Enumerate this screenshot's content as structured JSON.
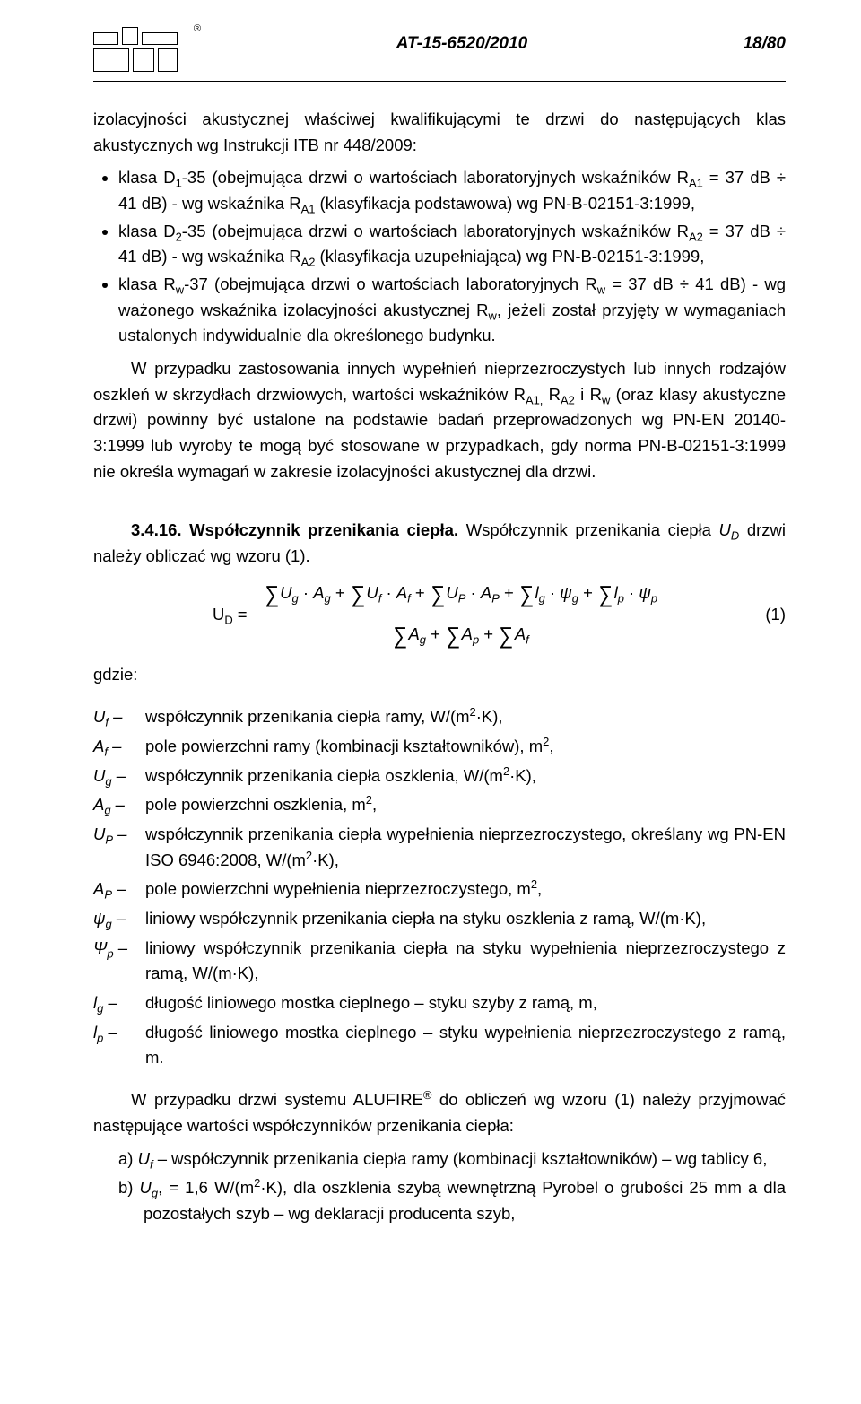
{
  "header": {
    "doc_number": "AT-15-6520/2010",
    "page": "18/80"
  },
  "lead_fragment": "izolacyjności akustycznej właściwej kwalifikującymi te drzwi do następujących klas akustycznych wg Instrukcji ITB nr 448/2009:",
  "bullets": [
    "klasa D<sub>1</sub>-35 (obejmująca drzwi o wartościach laboratoryjnych wskaźników R<sub>A1</sub> = 37 dB ÷ 41 dB) - wg wskaźnika R<sub>A1</sub> (klasyfikacja podstawowa) wg PN-B-02151-3:1999,",
    "klasa D<sub>2</sub>-35 (obejmująca drzwi o wartościach laboratoryjnych wskaźników R<sub>A2</sub> = 37 dB ÷ 41 dB) - wg wskaźnika R<sub>A2</sub> (klasyfikacja uzupełniająca) wg PN-B-02151-3:1999,",
    "klasa R<sub>w</sub>-37 (obejmująca drzwi o wartościach laboratoryjnych R<sub>w</sub> = 37 dB ÷ 41 dB) - wg ważonego wskaźnika izolacyjności akustycznej R<sub>w</sub>, jeżeli został przyjęty w wymaganiach ustalonych indywidualnie dla określonego budynku."
  ],
  "para_after_bullets": "W przypadku zastosowania innych wypełnień nieprzezroczystych lub innych rodzajów oszkleń w skrzydłach drzwiowych, wartości wskaźników R<sub>A1,</sub> R<sub>A2</sub> i R<sub>w</sub> (oraz klasy akustyczne drzwi) powinny być ustalone na podstawie badań przeprowadzonych wg PN-EN 20140-3:1999 lub wyroby te mogą być stosowane w przypadkach, gdy norma PN-B-02151-3:1999 nie określa wymagań w zakresie izolacyjności akustycznej dla drzwi.",
  "section_3_4_16": {
    "label": "3.4.16. Współczynnik przenikania ciepła.",
    "text": " Współczynnik przenikania ciepła <i>U<sub>D</sub></i> drzwi należy obliczać wg wzoru (1)."
  },
  "formula": {
    "lhs": "U<sub>D</sub> =",
    "num": "<span class=\"sum\">∑</span><i>U<sub>g</sub></i> · <i>A<sub>g</sub></i> + <span class=\"sum\">∑</span><i>U<sub>f</sub></i> · <i>A<sub>f</sub></i> + <span class=\"sum\">∑</span><i>U<sub>P</sub></i> · <i>A<sub>P</sub></i> + <span class=\"sum\">∑</span><i>l<sub>g</sub></i> · <i>ψ<sub>g</sub></i> + <span class=\"sum\">∑</span><i>l<sub>p</sub></i> · <i>ψ<sub>p</sub></i>",
    "den": "<span class=\"sum\">∑</span><i>A<sub>g</sub></i> + <span class=\"sum\">∑</span><i>A<sub>p</sub></i> + <span class=\"sum\">∑</span><i>A<sub>f</sub></i>",
    "eqno": "(1)"
  },
  "gdzie_label": "gdzie:",
  "defs": [
    {
      "sym": "U<sub>f</sub> –",
      "desc": "współczynnik przenikania ciepła ramy, W/(m<sup>2</sup>·K),"
    },
    {
      "sym": "A<sub>f</sub> –",
      "desc": "pole powierzchni ramy (kombinacji kształtowników), m<sup>2</sup>,"
    },
    {
      "sym": "U<sub>g</sub> –",
      "desc": "współczynnik przenikania ciepła oszklenia, W/(m<sup>2</sup>·K),"
    },
    {
      "sym": "A<sub>g</sub> –",
      "desc": "pole powierzchni oszklenia, m<sup>2</sup>,"
    },
    {
      "sym": "U<sub>P</sub> –",
      "desc": "współczynnik przenikania ciepła wypełnienia nieprzezroczystego, określany wg PN-EN ISO 6946:2008, W/(m<sup>2</sup>·K),"
    },
    {
      "sym": "A<sub>P</sub> –",
      "desc": "pole powierzchni wypełnienia nieprzezroczystego, m<sup>2</sup>,"
    },
    {
      "sym": "ψ<sub>g</sub> –",
      "desc": "liniowy współczynnik przenikania ciepła na styku oszklenia z ramą, W/(m·K),"
    },
    {
      "sym": "Ψ<sub>p</sub> –",
      "desc": "liniowy współczynnik przenikania ciepła na styku wypełnienia nieprzezroczystego z ramą, W/(m·K),"
    },
    {
      "sym": "l<sub>g</sub> –",
      "desc": "długość liniowego mostka cieplnego – styku szyby z ramą, m,"
    },
    {
      "sym": "l<sub>p</sub> –",
      "desc": "długość liniowego mostka cieplnego – styku wypełnienia nieprzezroczystego z ramą, m."
    }
  ],
  "after_defs": "W przypadku drzwi systemu ALUFIRE<sup>®</sup> do obliczeń wg wzoru (1) należy przyjmować następujące wartości współczynników przenikania ciepła:",
  "abc": [
    "a)  <i>U<sub>f</sub></i> – współczynnik przenikania ciepła ramy (kombinacji kształtowników) – wg tablicy 6,",
    "b)  <i>U<sub>g</sub></i>, = 1,6 W/(m<sup>2</sup>·K), dla oszklenia szybą wewnętrzną Pyrobel o grubości 25 mm a dla pozostałych szyb – wg deklaracji producenta szyb,"
  ]
}
